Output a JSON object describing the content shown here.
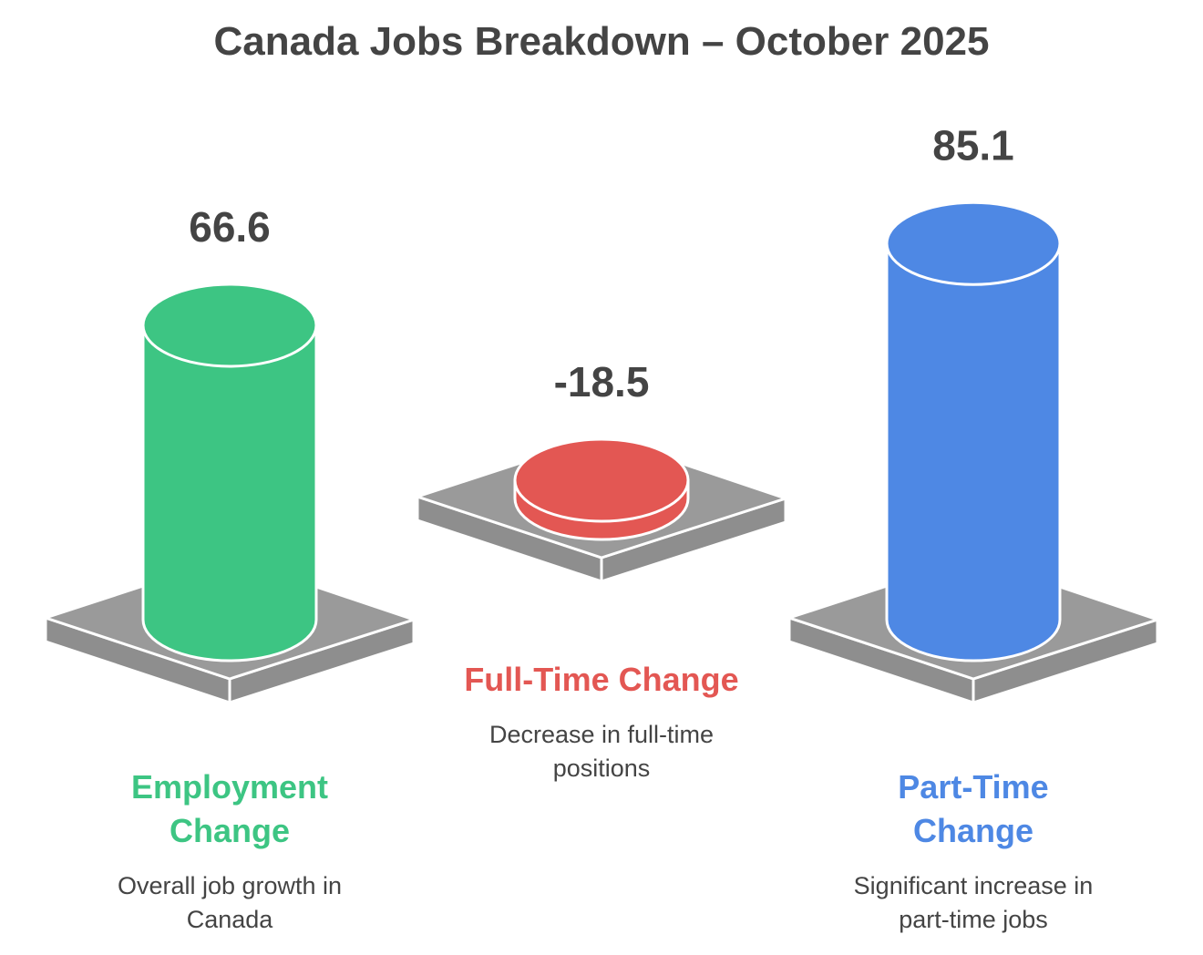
{
  "chart_data": {
    "type": "cylinder-bar",
    "title": "Canada Jobs Breakdown – October 2025",
    "categories": [
      "Employment Change",
      "Full-Time Change",
      "Part-Time Change"
    ],
    "descriptions": [
      "Overall job growth in Canada",
      "Decrease in full-time positions",
      "Significant increase in part-time jobs"
    ],
    "values": [
      66.6,
      -18.5,
      85.1
    ],
    "colors": [
      "#3dc583",
      "#e35753",
      "#4e88e4"
    ]
  }
}
